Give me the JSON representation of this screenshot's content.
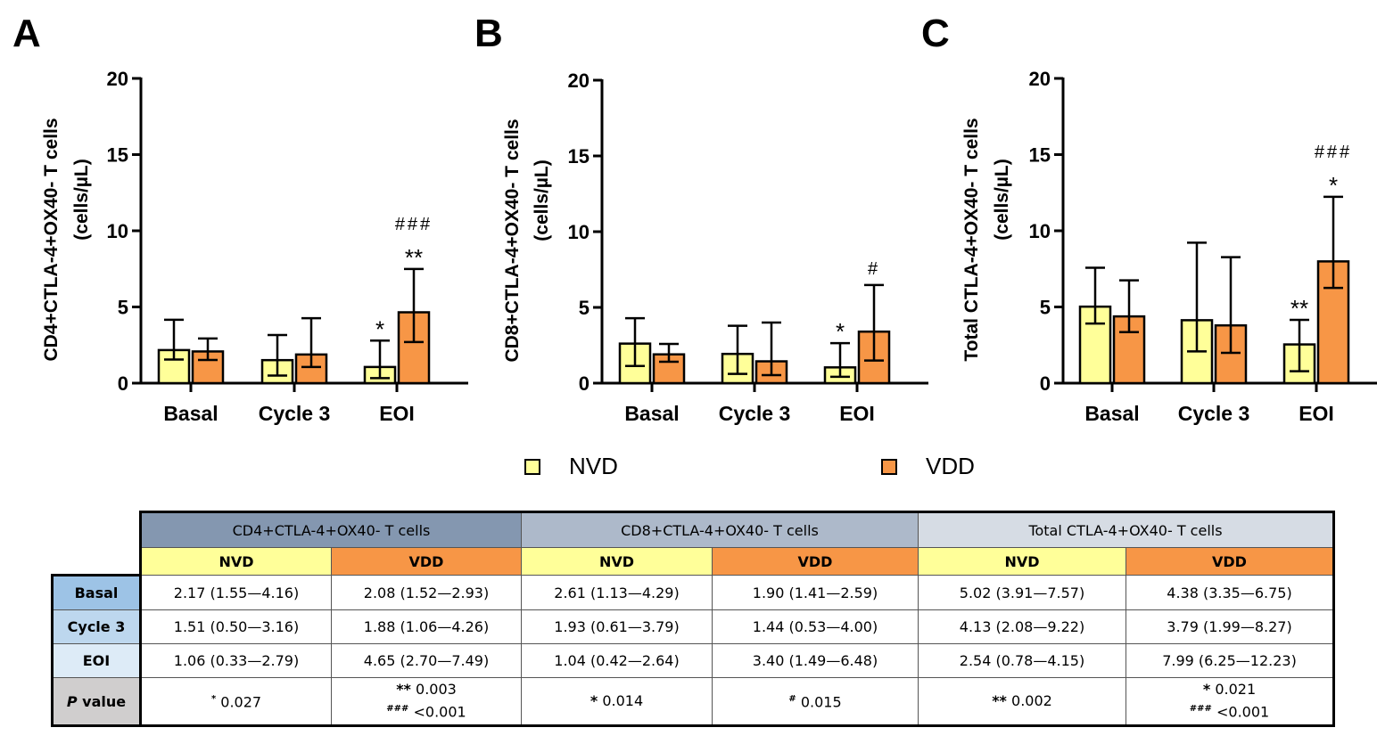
{
  "panels": [
    {
      "letter": "A",
      "ylabel_line1": "CD4+CTLA-4+OX40- T cells",
      "ylabel_line2": "(cells/µL)",
      "yticks": [
        "0",
        "5",
        "10",
        "15",
        "20"
      ],
      "categories": [
        "Basal",
        "Cycle 3",
        "EOI"
      ],
      "annotations": [
        {
          "category": "EOI",
          "series": "NVD",
          "star": "*",
          "hash": ""
        },
        {
          "category": "EOI",
          "series": "VDD",
          "star": "**",
          "hash": "###"
        }
      ]
    },
    {
      "letter": "B",
      "ylabel_line1": "CD8+CTLA-4+OX40- T cells",
      "ylabel_line2": "(cells/µL)",
      "yticks": [
        "0",
        "5",
        "10",
        "15",
        "20"
      ],
      "categories": [
        "Basal",
        "Cycle 3",
        "EOI"
      ],
      "annotations": [
        {
          "category": "EOI",
          "series": "NVD",
          "star": "*",
          "hash": ""
        },
        {
          "category": "EOI",
          "series": "VDD",
          "star": "",
          "hash": "#"
        }
      ]
    },
    {
      "letter": "C",
      "ylabel_line1": "Total CTLA-4+OX40- T cells",
      "ylabel_line2": "(cells/µL)",
      "yticks": [
        "0",
        "5",
        "10",
        "15",
        "20"
      ],
      "categories": [
        "Basal",
        "Cycle 3",
        "EOI"
      ],
      "annotations": [
        {
          "category": "EOI",
          "series": "NVD",
          "star": "**",
          "hash": ""
        },
        {
          "category": "EOI",
          "series": "VDD",
          "star": "*",
          "hash": "###"
        }
      ]
    }
  ],
  "legend": {
    "nvd": "NVD",
    "vdd": "VDD"
  },
  "colors": {
    "nvd": "#ffff99",
    "vdd": "#f79646"
  },
  "chart_data": [
    {
      "type": "bar",
      "title": "A",
      "ylabel": "CD4+CTLA-4+OX40- T cells (cells/µL)",
      "categories": [
        "Basal",
        "Cycle 3",
        "EOI"
      ],
      "ylim": [
        0,
        20
      ],
      "series": [
        {
          "name": "NVD",
          "values": [
            2.17,
            1.51,
            1.06
          ],
          "low": [
            1.55,
            0.5,
            0.33
          ],
          "high": [
            4.16,
            3.16,
            2.79
          ]
        },
        {
          "name": "VDD",
          "values": [
            2.08,
            1.88,
            4.65
          ],
          "low": [
            1.52,
            1.06,
            2.7
          ],
          "high": [
            2.93,
            4.26,
            7.49
          ]
        }
      ]
    },
    {
      "type": "bar",
      "title": "B",
      "ylabel": "CD8+CTLA-4+OX40- T cells (cells/µL)",
      "categories": [
        "Basal",
        "Cycle 3",
        "EOI"
      ],
      "ylim": [
        0,
        20
      ],
      "series": [
        {
          "name": "NVD",
          "values": [
            2.61,
            1.93,
            1.04
          ],
          "low": [
            1.13,
            0.61,
            0.42
          ],
          "high": [
            4.29,
            3.79,
            2.64
          ]
        },
        {
          "name": "VDD",
          "values": [
            1.9,
            1.44,
            3.4
          ],
          "low": [
            1.41,
            0.53,
            1.49
          ],
          "high": [
            2.59,
            4.0,
            6.48
          ]
        }
      ]
    },
    {
      "type": "bar",
      "title": "C",
      "ylabel": "Total CTLA-4+OX40- T cells (cells/µL)",
      "categories": [
        "Basal",
        "Cycle 3",
        "EOI"
      ],
      "ylim": [
        0,
        20
      ],
      "series": [
        {
          "name": "NVD",
          "values": [
            5.02,
            4.13,
            2.54
          ],
          "low": [
            3.91,
            2.08,
            0.78
          ],
          "high": [
            7.57,
            9.22,
            4.15
          ]
        },
        {
          "name": "VDD",
          "values": [
            4.38,
            3.79,
            7.99
          ],
          "low": [
            3.35,
            1.99,
            6.25
          ],
          "high": [
            6.75,
            8.27,
            12.23
          ]
        }
      ]
    }
  ],
  "table": {
    "groups": [
      "CD4+CTLA-4+OX40- T cells",
      "CD8+CTLA-4+OX40- T cells",
      "Total CTLA-4+OX40- T cells"
    ],
    "sub": [
      "NVD",
      "VDD"
    ],
    "rows": [
      {
        "label": "Basal",
        "cells": [
          "2.17 (1.55—4.16)",
          "2.08 (1.52—2.93)",
          "2.61 (1.13—4.29)",
          "1.90 (1.41—2.59)",
          "5.02 (3.91—7.57)",
          "4.38 (3.35—6.75)"
        ]
      },
      {
        "label": "Cycle 3",
        "cells": [
          "1.51 (0.50—3.16)",
          "1.88 (1.06—4.26)",
          "1.93 (0.61—3.79)",
          "1.44 (0.53—4.00)",
          "4.13 (2.08—9.22)",
          "3.79 (1.99—8.27)"
        ]
      },
      {
        "label": "EOI",
        "cells": [
          "1.06 (0.33—2.79)",
          "4.65 (2.70—7.49)",
          "1.04 (0.42—2.64)",
          "3.40 (1.49—6.48)",
          "2.54 (0.78—4.15)",
          "7.99 (6.25—12.23)"
        ]
      }
    ],
    "p_label_italic": "P",
    "p_label_rest": " value",
    "p_cells": [
      {
        "l1sym": "*",
        "l1val": " 0.027",
        "l2sym": "",
        "l2val": ""
      },
      {
        "l1sym": "**",
        "l1val": " 0.003",
        "l2sym": "###",
        "l2val": " <0.001"
      },
      {
        "l1sym": "*",
        "l1val": " 0.014",
        "l2sym": "",
        "l2val": ""
      },
      {
        "l1sym": "#",
        "l1val": " 0.015",
        "l2sym": "",
        "l2val": ""
      },
      {
        "l1sym": "**",
        "l1val": " 0.002",
        "l2sym": "",
        "l2val": ""
      },
      {
        "l1sym": "*",
        "l1val": " 0.021",
        "l2sym": "###",
        "l2val": " <0.001"
      }
    ]
  }
}
